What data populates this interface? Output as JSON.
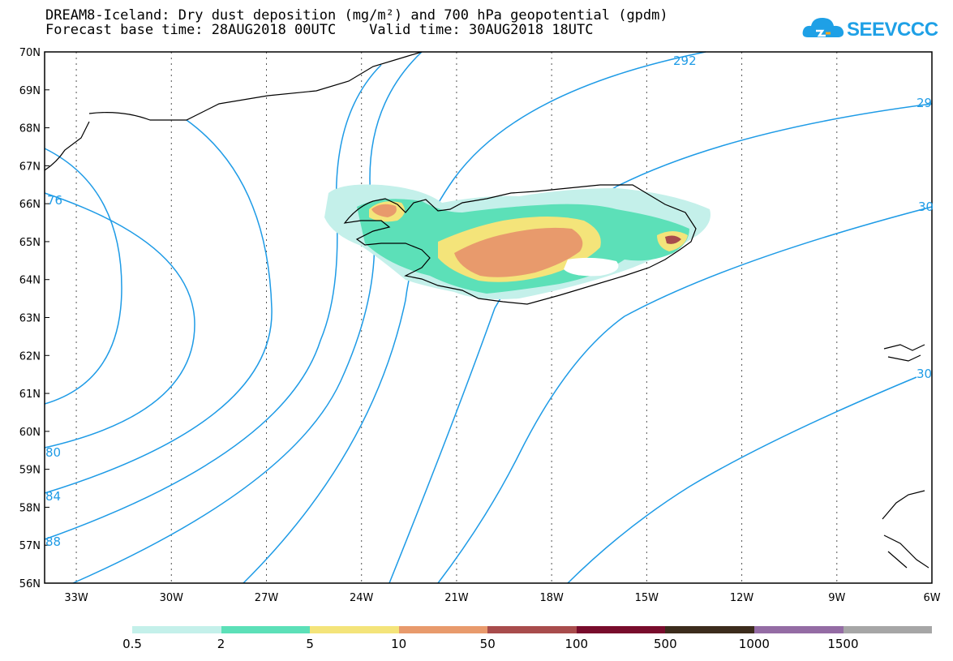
{
  "title": {
    "line1": "DREAM8-Iceland: Dry dust deposition (mg/m²) and 700 hPa geopotential (gpdm)",
    "line2": "Forecast base time: 28AUG2018 00UTC    Valid time: 30AUG2018 18UTC"
  },
  "logo": {
    "text": "SEEVCCC",
    "color": "#1ea0e6",
    "icon": "cloud-logo-icon"
  },
  "map": {
    "lat_labels": [
      "70N",
      "69N",
      "68N",
      "67N",
      "66N",
      "65N",
      "64N",
      "63N",
      "62N",
      "61N",
      "60N",
      "59N",
      "58N",
      "57N",
      "56N"
    ],
    "lon_labels": [
      "33W",
      "30W",
      "27W",
      "24W",
      "21W",
      "18W",
      "15W",
      "12W",
      "9W",
      "6W"
    ],
    "lat_range": [
      56,
      70
    ],
    "lon_range": [
      -34,
      -6
    ],
    "contour_color": "#1e9be6",
    "contour_labels": [
      "292",
      "29",
      "30",
      "30",
      "76",
      "80",
      "84",
      "88"
    ]
  },
  "legend": {
    "colors": [
      "#c4f0ea",
      "#5ce0b8",
      "#f4e47a",
      "#e89a6c",
      "#a84c4c",
      "#780c2c",
      "#3c2c1c",
      "#946ca4",
      "#a6a6a6"
    ],
    "labels": [
      "0.5",
      "2",
      "5",
      "10",
      "50",
      "100",
      "500",
      "1000",
      "1500"
    ]
  }
}
